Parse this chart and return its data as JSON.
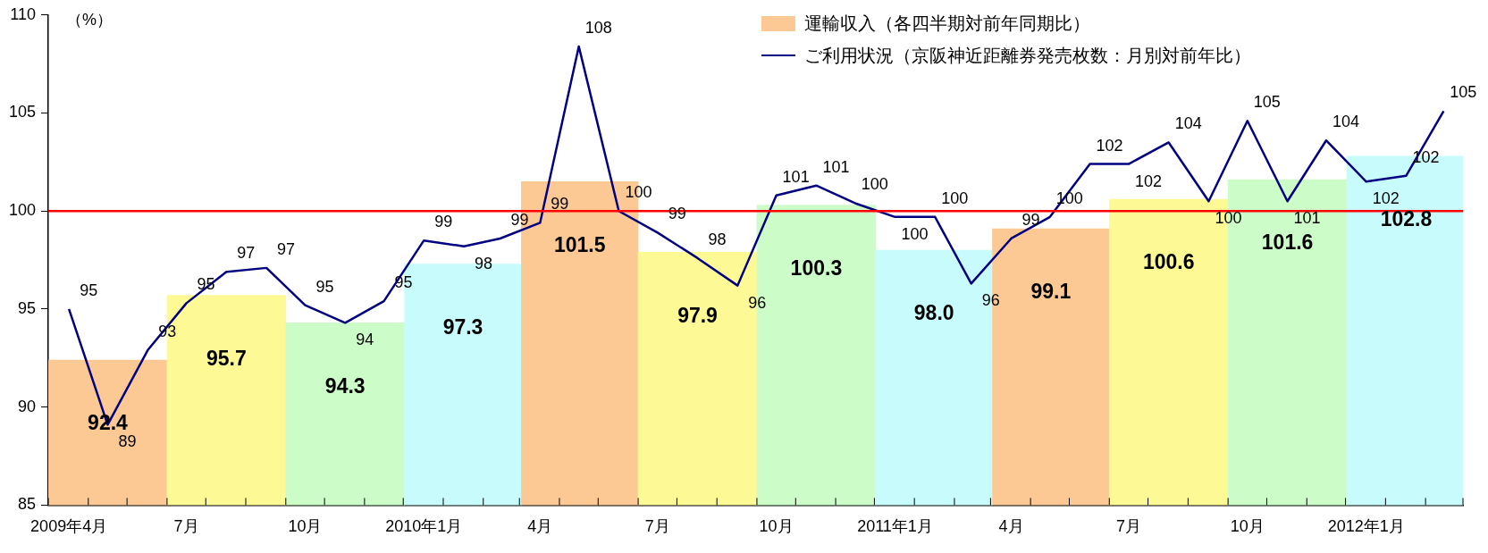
{
  "chart_data": {
    "type": "bar",
    "ylabel": "（%）",
    "legend": "top right",
    "xlim": [
      "2009-03-16",
      "2012-03-16"
    ],
    "xticks": [
      {
        "value": "2009-04",
        "label": "2009年4月"
      },
      {
        "value": "2009-07",
        "label": "7月"
      },
      {
        "value": "2009-10",
        "label": "10月"
      },
      {
        "value": "2010-01",
        "label": "2010年1月"
      },
      {
        "value": "2010-04",
        "label": "4月"
      },
      {
        "value": "2010-07",
        "label": "7月"
      },
      {
        "value": "2010-10",
        "label": "10月"
      },
      {
        "value": "2011-01",
        "label": "2011年1月"
      },
      {
        "value": "2011-04",
        "label": "4月"
      },
      {
        "value": "2011-07",
        "label": "7月"
      },
      {
        "value": "2011-10",
        "label": "10月"
      },
      {
        "value": "2012-01",
        "label": "2012年1月"
      }
    ],
    "ylim": [
      85,
      110
    ],
    "yticks": [
      85,
      90,
      95,
      100,
      105,
      110
    ],
    "ref_lines": [
      {
        "axis": "y",
        "value": 100,
        "color": "#ff0000"
      }
    ],
    "series": [
      {
        "name": "運輸収入（各四半期対前年同期比）",
        "colors": [
          "#fcc995",
          "#fdfa96",
          "#ccfdc8",
          "#c8fcfc",
          "#fcc995",
          "#fdfa96",
          "#ccfdc8",
          "#c8fcfc",
          "#fcc995",
          "#fdfa96",
          "#ccfdc8",
          "#c8fcfc"
        ],
        "x": [
          "2009-05",
          "2009-08",
          "2009-11",
          "2010-02",
          "2010-05",
          "2010-08",
          "2010-11",
          "2011-02",
          "2011-05",
          "2011-08",
          "2011-11",
          "2012-02"
        ],
        "values": [
          92.4,
          95.7,
          94.3,
          97.3,
          101.5,
          97.9,
          100.3,
          98.0,
          99.1,
          100.6,
          101.6,
          102.8
        ],
        "value_labels": [
          "92.4",
          "95.7",
          "94.3",
          "97.3",
          "101.5",
          "97.9",
          "100.3",
          "98.0",
          "99.1",
          "100.6",
          "101.6",
          "102.8"
        ]
      },
      {
        "type": "line",
        "name": "ご利用状況（京阪神近距離券発売枚数：月別対前年比）",
        "color": "#000080",
        "x": [
          "2009-04",
          "2009-05",
          "2009-06",
          "2009-07",
          "2009-08",
          "2009-09",
          "2009-10",
          "2009-11",
          "2009-12",
          "2010-01",
          "2010-02",
          "2010-03",
          "2010-04",
          "2010-05",
          "2010-06",
          "2010-07",
          "2010-08",
          "2010-09",
          "2010-10",
          "2010-11",
          "2010-12",
          "2011-01",
          "2011-02",
          "2011-03",
          "2011-04",
          "2011-05",
          "2011-06",
          "2011-07",
          "2011-08",
          "2011-09",
          "2011-10",
          "2011-11",
          "2011-12",
          "2012-01",
          "2012-02",
          "2012-03"
        ],
        "values": [
          95.0,
          89.1,
          92.9,
          95.3,
          96.9,
          97.1,
          95.2,
          94.3,
          95.4,
          98.5,
          98.2,
          98.6,
          99.4,
          108.4,
          100.0,
          98.9,
          97.6,
          96.2,
          100.8,
          101.3,
          100.4,
          99.7,
          99.7,
          96.3,
          98.6,
          99.7,
          102.4,
          102.4,
          103.5,
          100.5,
          104.6,
          100.5,
          103.6,
          101.5,
          101.8,
          105.1
        ],
        "value_labels": [
          "95",
          "89",
          "93",
          "95",
          "97",
          "97",
          "95",
          "94",
          "95",
          "99",
          "98",
          "99",
          "99",
          "108",
          "100",
          "99",
          "98",
          "96",
          "101",
          "101",
          "100",
          "100",
          "100",
          "96",
          "99",
          "100",
          "102",
          "102",
          "104",
          "100",
          "105",
          "101",
          "104",
          "102",
          "102",
          "105"
        ]
      }
    ]
  }
}
